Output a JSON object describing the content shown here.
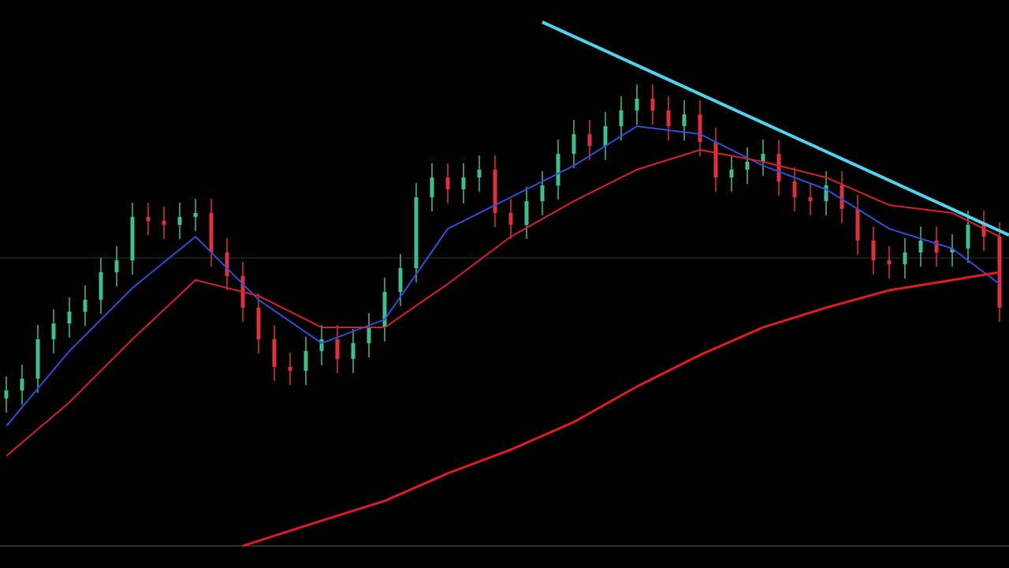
{
  "chart_data": {
    "type": "candlestick",
    "up_color": "#3fbf8f",
    "down_color": "#e0303a",
    "open": [
      187,
      197,
      212,
      262,
      282,
      297,
      312,
      347,
      362,
      417,
      412,
      407,
      417,
      422,
      372,
      342,
      302,
      262,
      227,
      222,
      247,
      262,
      237,
      257,
      277,
      322,
      352,
      442,
      467,
      452,
      467,
      477,
      422,
      407,
      437,
      457,
      497,
      522,
      507,
      532,
      552,
      567,
      552,
      532,
      547,
      512,
      467,
      477,
      487,
      497,
      462,
      442,
      437,
      457,
      427,
      387,
      362,
      357,
      372,
      387,
      372,
      377,
      407,
      392
    ],
    "high": [
      215,
      230,
      280,
      300,
      315,
      330,
      365,
      380,
      435,
      435,
      430,
      435,
      440,
      440,
      390,
      360,
      320,
      280,
      245,
      265,
      280,
      280,
      275,
      295,
      340,
      370,
      460,
      485,
      485,
      485,
      495,
      495,
      440,
      455,
      475,
      515,
      540,
      540,
      550,
      570,
      585,
      585,
      570,
      565,
      565,
      530,
      495,
      505,
      515,
      515,
      480,
      460,
      475,
      475,
      445,
      405,
      380,
      390,
      405,
      405,
      395,
      425,
      425,
      410
    ],
    "low": [
      169,
      179,
      194,
      244,
      264,
      279,
      294,
      329,
      344,
      394,
      389,
      389,
      399,
      354,
      324,
      284,
      244,
      209,
      204,
      204,
      229,
      219,
      219,
      239,
      259,
      304,
      334,
      424,
      434,
      434,
      449,
      404,
      389,
      389,
      419,
      439,
      479,
      489,
      489,
      514,
      534,
      534,
      514,
      514,
      494,
      449,
      449,
      459,
      469,
      444,
      424,
      419,
      419,
      409,
      369,
      344,
      339,
      339,
      354,
      354,
      354,
      359,
      374,
      284
    ],
    "close": [
      197,
      212,
      262,
      282,
      297,
      312,
      347,
      362,
      417,
      412,
      407,
      417,
      422,
      372,
      342,
      302,
      262,
      227,
      222,
      247,
      262,
      237,
      257,
      277,
      322,
      352,
      442,
      467,
      452,
      467,
      477,
      422,
      407,
      437,
      457,
      497,
      522,
      507,
      532,
      552,
      567,
      552,
      532,
      547,
      512,
      467,
      477,
      487,
      497,
      462,
      442,
      437,
      457,
      427,
      387,
      362,
      357,
      372,
      387,
      372,
      377,
      407,
      392,
      302
    ],
    "series": [
      {
        "color": "#2f4fd8",
        "width": 2,
        "x": [
          0,
          4,
          8,
          12,
          16,
          20,
          24,
          28,
          32,
          36,
          40,
          44,
          48,
          52,
          56,
          60,
          63
        ],
        "values": [
          152,
          247,
          327,
          392,
          312,
          257,
          287,
          402,
          442,
          482,
          532,
          522,
          482,
          452,
          402,
          377,
          332
        ]
      },
      {
        "color": "#d8202a",
        "width": 2,
        "x": [
          0,
          4,
          8,
          12,
          16,
          20,
          24,
          28,
          32,
          36,
          40,
          44,
          48,
          52,
          56,
          60,
          63
        ],
        "values": [
          114,
          182,
          262,
          337,
          317,
          277,
          277,
          332,
          392,
          437,
          477,
          502,
          487,
          467,
          432,
          422,
          392
        ]
      },
      {
        "color": "#e01b24",
        "width": 3,
        "x": [
          15,
          20,
          24,
          28,
          32,
          36,
          40,
          44,
          48,
          52,
          56,
          60,
          63
        ],
        "values": [
          0,
          32,
          57,
          92,
          122,
          157,
          202,
          242,
          277,
          302,
          324,
          337,
          347
        ]
      },
      {
        "color": "#4fd3ee",
        "width": 4,
        "x": [
          34,
          63.6
        ],
        "values": [
          664,
          394
        ]
      }
    ],
    "hline": 365
  }
}
